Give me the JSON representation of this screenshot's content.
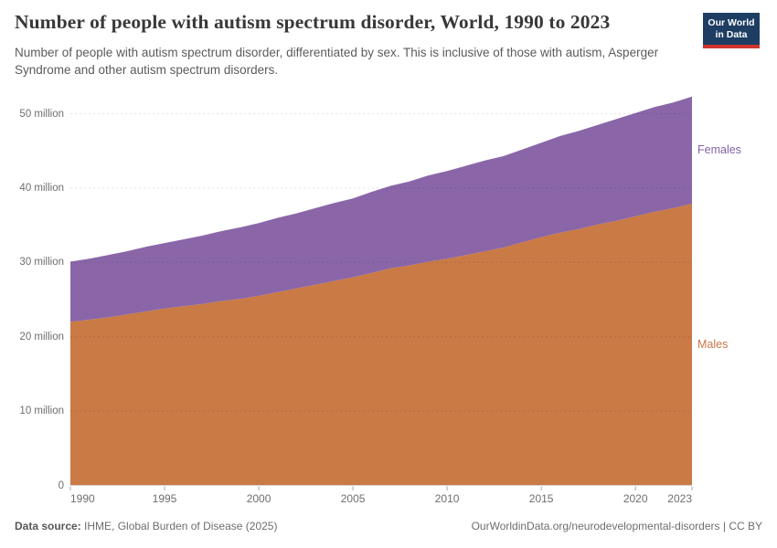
{
  "header": {
    "title": "Number of people with autism spectrum disorder, World, 1990 to 2023",
    "subtitle": "Number of people with autism spectrum disorder, differentiated by sex. This is inclusive of those with autism, Asperger Syndrome and other autism spectrum disorders.",
    "logo": {
      "line1": "Our World",
      "line2": "in Data",
      "bg_color": "#1D3D63",
      "bar_color": "#D0352C"
    }
  },
  "chart_data": {
    "type": "area",
    "stacked": true,
    "title": "Number of people with autism spectrum disorder, World, 1990 to 2023",
    "xlabel": "",
    "ylabel": "",
    "xlim": [
      1990,
      2023
    ],
    "ylim": [
      0,
      52.5
    ],
    "grid": "horizontal-dashed",
    "legend_position": "right-edge-labels",
    "x": [
      1990,
      1991,
      1992,
      1993,
      1994,
      1995,
      1996,
      1997,
      1998,
      1999,
      2000,
      2001,
      2002,
      2003,
      2004,
      2005,
      2006,
      2007,
      2008,
      2009,
      2010,
      2011,
      2012,
      2013,
      2014,
      2015,
      2016,
      2017,
      2018,
      2019,
      2020,
      2021,
      2022,
      2023
    ],
    "series": [
      {
        "name": "Males",
        "unit": "million",
        "color": "#C97A45",
        "label_color": "#CB7647",
        "values": [
          22.0,
          22.3,
          22.6,
          23.0,
          23.4,
          23.8,
          24.1,
          24.4,
          24.8,
          25.1,
          25.5,
          26.0,
          26.5,
          27.0,
          27.5,
          28.0,
          28.6,
          29.2,
          29.6,
          30.1,
          30.5,
          31.0,
          31.5,
          32.0,
          32.7,
          33.4,
          34.0,
          34.5,
          35.1,
          35.6,
          36.2,
          36.8,
          37.3,
          37.9
        ]
      },
      {
        "name": "Females",
        "unit": "million",
        "color": "#8A66A8",
        "label_color": "#8462A8",
        "values": [
          8.1,
          8.2,
          8.4,
          8.5,
          8.7,
          8.8,
          9.0,
          9.2,
          9.4,
          9.6,
          9.8,
          10.0,
          10.1,
          10.3,
          10.5,
          10.6,
          10.9,
          11.1,
          11.3,
          11.6,
          11.8,
          12.0,
          12.2,
          12.3,
          12.5,
          12.7,
          13.0,
          13.2,
          13.4,
          13.7,
          13.9,
          14.1,
          14.2,
          14.4
        ]
      }
    ],
    "yticks": [
      {
        "value": 0,
        "label": "0"
      },
      {
        "value": 10,
        "label": "10 million"
      },
      {
        "value": 20,
        "label": "20 million"
      },
      {
        "value": 30,
        "label": "30 million"
      },
      {
        "value": 40,
        "label": "40 million"
      },
      {
        "value": 50,
        "label": "50 million"
      }
    ],
    "xticks": [
      "1990",
      "1995",
      "2000",
      "2005",
      "2010",
      "2015",
      "2020",
      "2023"
    ]
  },
  "footer": {
    "source_label": "Data source:",
    "source": " IHME, Global Burden of Disease (2025)",
    "link": "OurWorldinData.org/neurodevelopmental-disorders",
    "separator": " | ",
    "license": "CC BY"
  }
}
